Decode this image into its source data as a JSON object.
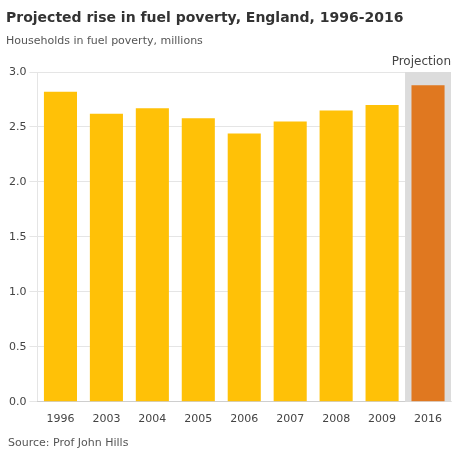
{
  "chart_data": {
    "type": "bar",
    "title": "Projected rise in fuel poverty, England, 1996-2016",
    "ylabel": "Households in fuel poverty, millions",
    "source": "Source: Prof John Hills",
    "annotation": "Projection",
    "categories": [
      "1996",
      "2003",
      "2004",
      "2005",
      "2006",
      "2007",
      "2008",
      "2009",
      "2016"
    ],
    "values": [
      2.82,
      2.62,
      2.67,
      2.58,
      2.44,
      2.55,
      2.65,
      2.7,
      2.88
    ],
    "colors": [
      "#FFC107",
      "#FFC107",
      "#FFC107",
      "#FFC107",
      "#FFC107",
      "#FFC107",
      "#FFC107",
      "#FFC107",
      "#E07820"
    ],
    "ylim": [
      0,
      3.0
    ],
    "yticks": [
      {
        "value": 0,
        "label": "0.0"
      },
      0.5,
      {
        "value": 1.0,
        "label": "1.0"
      },
      1.5,
      {
        "value": 2.0,
        "label": "2.0"
      },
      2.5,
      {
        "value": 3.0,
        "label": "3.0"
      }
    ],
    "grid": true
  }
}
